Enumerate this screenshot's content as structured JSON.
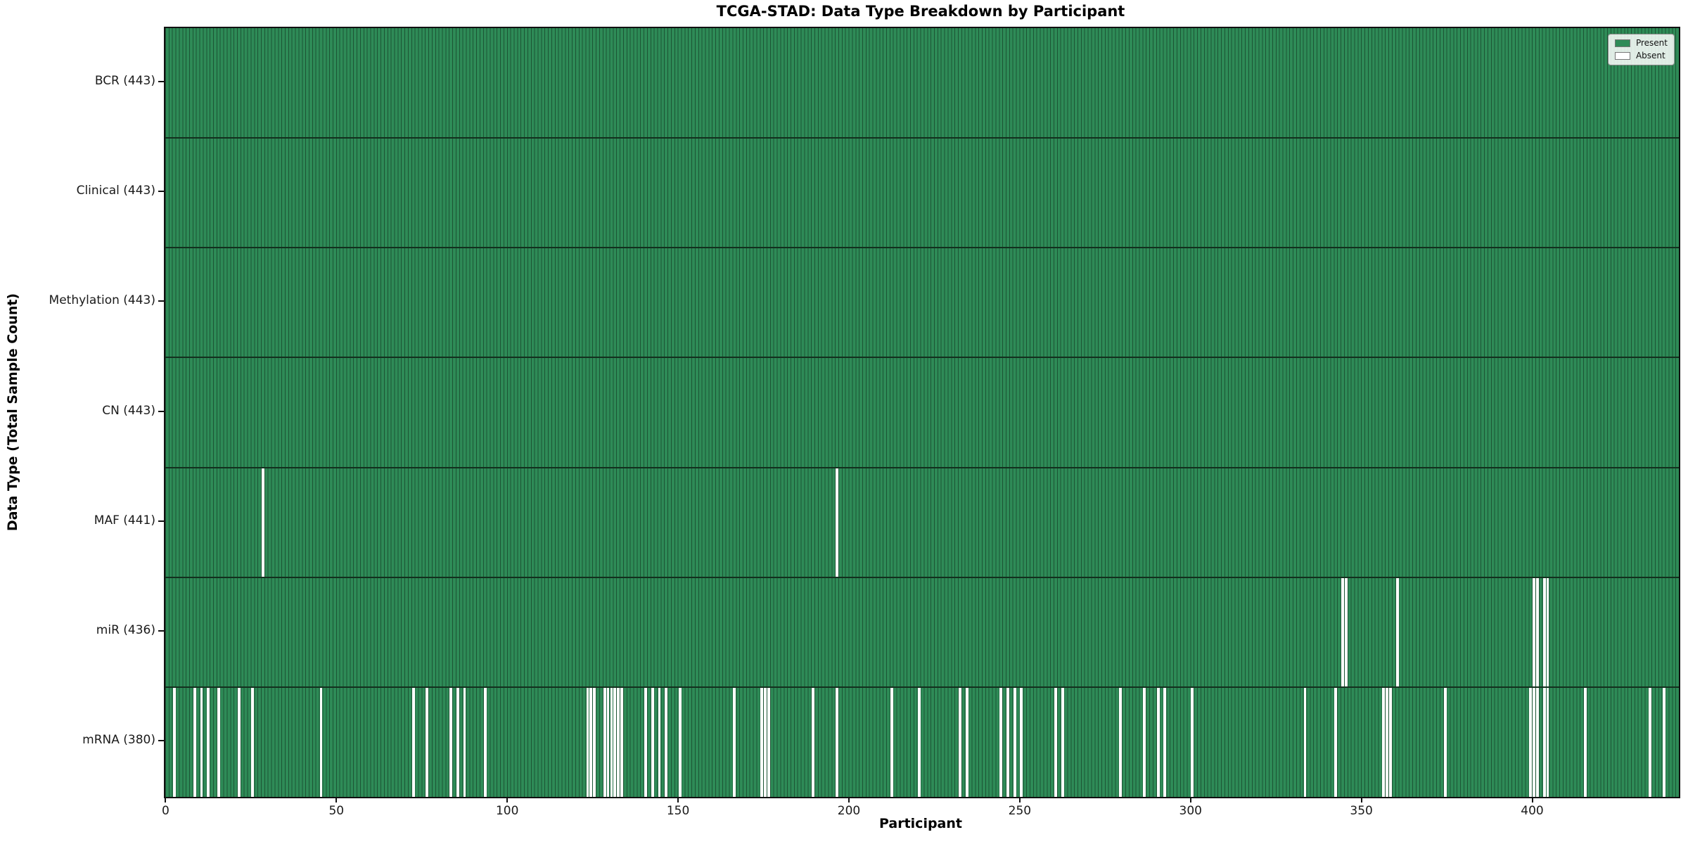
{
  "chart_data": {
    "type": "heatmap",
    "title": "TCGA-STAD: Data Type Breakdown by Participant",
    "xlabel": "Participant",
    "ylabel": "Data Type (Total Sample Count)",
    "x_ticks": [
      0,
      50,
      100,
      150,
      200,
      250,
      300,
      350,
      400
    ],
    "x_range": [
      -0.5,
      442.5
    ],
    "n_participants": 443,
    "grid": false,
    "legend_position": "upper right",
    "legend": [
      {
        "label": "Present",
        "color": "#2e8b57"
      },
      {
        "label": "Absent",
        "color": "#ffffff"
      }
    ],
    "colors": {
      "present": "#2e8b57",
      "absent": "#ffffff",
      "bar_edge": "#1c5434",
      "row_divider": "#13301e"
    },
    "rows": [
      {
        "name": "BCR",
        "label": "BCR (443)",
        "total": 443,
        "absent": []
      },
      {
        "name": "Clinical",
        "label": "Clinical (443)",
        "total": 443,
        "absent": []
      },
      {
        "name": "Methylation",
        "label": "Methylation (443)",
        "total": 443,
        "absent": []
      },
      {
        "name": "CN",
        "label": "CN (443)",
        "total": 443,
        "absent": []
      },
      {
        "name": "MAF",
        "label": "MAF (441)",
        "total": 441,
        "absent": [
          28,
          196
        ]
      },
      {
        "name": "miR",
        "label": "miR (436)",
        "total": 436,
        "absent": [
          344,
          345,
          360,
          400,
          401,
          403,
          404
        ]
      },
      {
        "name": "mRNA",
        "label": "mRNA (380)",
        "total": 380,
        "absent": [
          2,
          8,
          10,
          12,
          15,
          21,
          25,
          45,
          72,
          76,
          83,
          85,
          87,
          93,
          123,
          124,
          125,
          128,
          129,
          130,
          131,
          132,
          133,
          140,
          142,
          144,
          146,
          150,
          166,
          174,
          175,
          176,
          189,
          196,
          212,
          220,
          232,
          234,
          244,
          246,
          248,
          250,
          260,
          262,
          279,
          286,
          290,
          292,
          300,
          333,
          342,
          356,
          357,
          358,
          374,
          399,
          400,
          401,
          403,
          404,
          415,
          434,
          438
        ]
      }
    ]
  }
}
